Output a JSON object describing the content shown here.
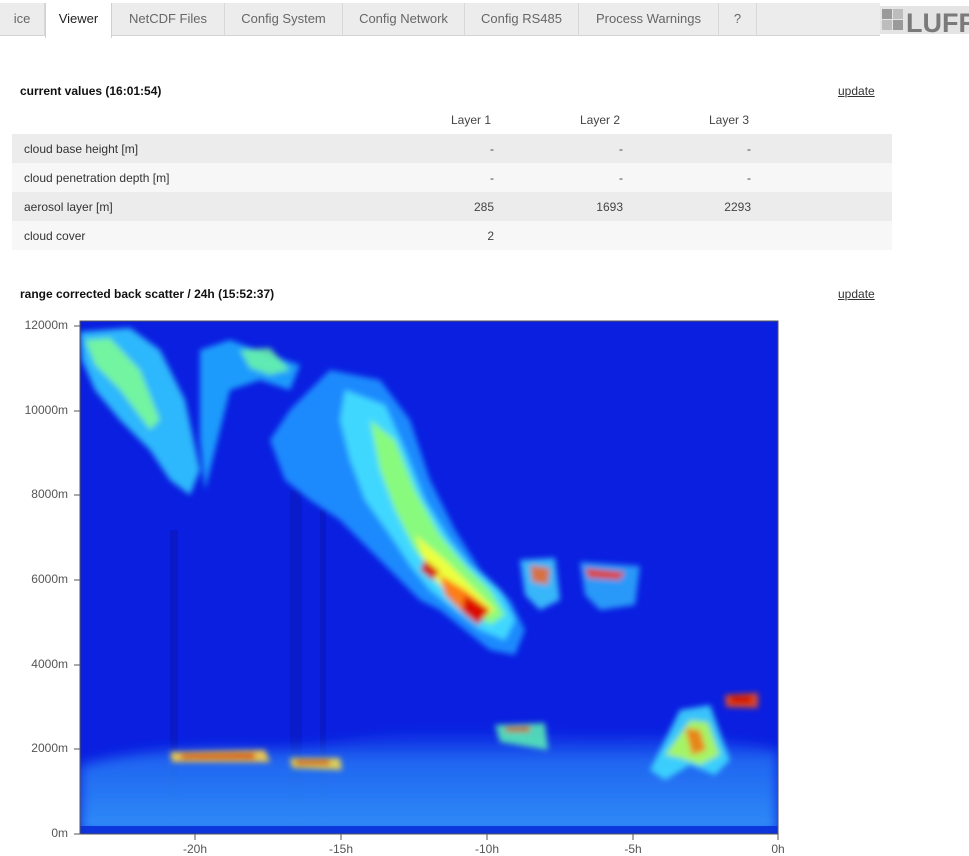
{
  "tabs": [
    {
      "label": "ice",
      "active": false
    },
    {
      "label": "Viewer",
      "active": true
    },
    {
      "label": "NetCDF Files",
      "active": false
    },
    {
      "label": "Config System",
      "active": false
    },
    {
      "label": "Config Network",
      "active": false
    },
    {
      "label": "Config RS485",
      "active": false
    },
    {
      "label": "Process Warnings",
      "active": false
    },
    {
      "label": "?",
      "active": false
    }
  ],
  "logo_text": "LUFFT",
  "current_values": {
    "title": "current values  (16:01:54)",
    "update_label": "update",
    "columns": [
      "Layer 1",
      "Layer 2",
      "Layer 3"
    ],
    "rows": [
      {
        "label": "cloud base height  [m]",
        "values": [
          "-",
          "-",
          "-"
        ]
      },
      {
        "label": "cloud penetration depth  [m]",
        "values": [
          "-",
          "-",
          "-"
        ]
      },
      {
        "label": "aerosol layer  [m]",
        "values": [
          "285",
          "1693",
          "2293"
        ]
      },
      {
        "label": "cloud cover",
        "values": [
          "2",
          "",
          ""
        ]
      }
    ]
  },
  "backscatter": {
    "title": "range corrected back scatter / 24h   (15:52:37)",
    "update_label": "update"
  },
  "chart_data": {
    "type": "heatmap",
    "title": "range corrected back scatter / 24h   (15:52:37)",
    "x_ticks": [
      "-20h",
      "-15h",
      "-10h",
      "-5h",
      "0h"
    ],
    "y_ticks": [
      "0m",
      "2000m",
      "4000m",
      "6000m",
      "8000m",
      "10000m",
      "12000m"
    ],
    "xlim": [
      -24,
      0
    ],
    "ylim": [
      0,
      12000
    ],
    "x_unit": "h",
    "y_unit": "m",
    "colormap": [
      "#0000b0",
      "#1565ff",
      "#30d0ff",
      "#80ff80",
      "#ffff00",
      "#ff6000",
      "#d00000"
    ],
    "background_color": "#0a1fe0"
  }
}
